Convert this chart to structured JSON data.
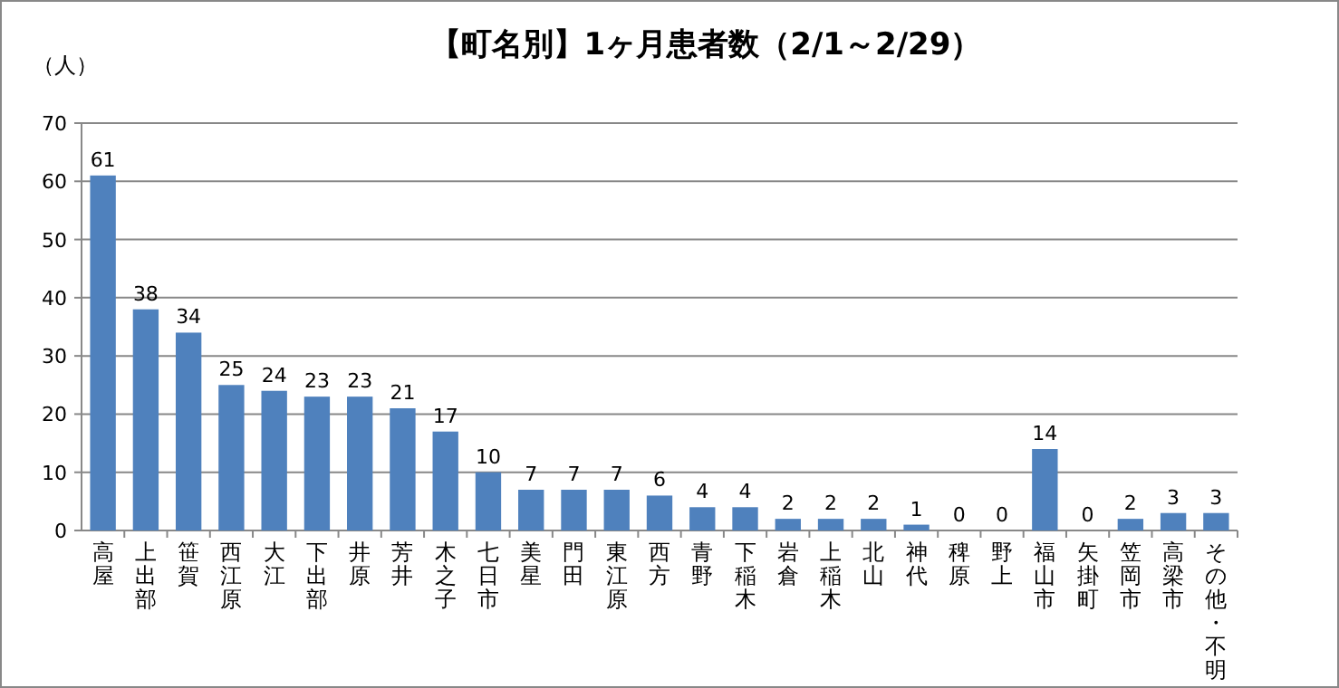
{
  "chart_data": {
    "type": "bar",
    "title": "【町名別】1ヶ月患者数（2/1～2/29）",
    "ylabel": "（人）",
    "categories": [
      "高屋",
      "上出部",
      "笹賀",
      "西江原",
      "大江",
      "下出部",
      "井原",
      "芳井",
      "木之子",
      "七日市",
      "美星",
      "門田",
      "東江原",
      "西方",
      "青野",
      "下稲木",
      "岩倉",
      "上稲木",
      "北山",
      "神代",
      "稗原",
      "野上",
      "福山市",
      "矢掛町",
      "笠岡市",
      "高梁市",
      "その他・不明"
    ],
    "values": [
      61,
      38,
      34,
      25,
      24,
      23,
      23,
      21,
      17,
      10,
      7,
      7,
      7,
      6,
      4,
      4,
      2,
      2,
      2,
      1,
      0,
      0,
      14,
      0,
      2,
      3,
      3
    ],
    "color": "#4f81bd",
    "ylim": [
      0,
      70
    ],
    "yticks": [
      0,
      10,
      20,
      30,
      40,
      50,
      60,
      70
    ],
    "grid": "y",
    "data_labels": true
  }
}
